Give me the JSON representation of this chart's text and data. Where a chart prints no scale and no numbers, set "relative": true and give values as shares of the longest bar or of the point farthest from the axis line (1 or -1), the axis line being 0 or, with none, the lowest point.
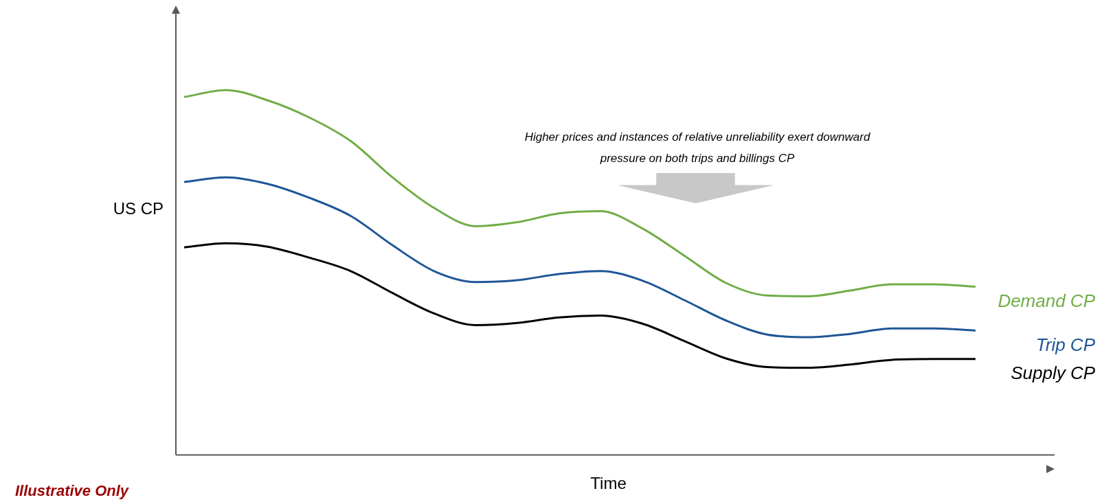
{
  "chart_data": {
    "type": "line",
    "relative": true,
    "ylabel": "US CP",
    "xlabel": "Time",
    "categories": [
      null,
      null,
      null,
      null,
      null,
      null,
      null,
      null,
      null,
      null,
      null,
      null,
      null,
      null,
      null,
      null,
      null,
      null,
      null,
      null
    ],
    "series": [
      {
        "name": "Demand CP",
        "color": "#70ad47",
        "values": [
          0.981,
          1,
          0.972,
          0.925,
          0.86,
          0.761,
          0.677,
          0.627,
          0.638,
          0.662,
          0.668,
          0.621,
          0.547,
          0.472,
          0.437,
          0.435,
          0.451,
          0.468,
          0.468,
          0.461
        ]
      },
      {
        "name": "Trip CP",
        "color": "#1f5597",
        "values": [
          0.748,
          0.761,
          0.743,
          0.705,
          0.655,
          0.575,
          0.504,
          0.474,
          0.479,
          0.496,
          0.504,
          0.478,
          0.425,
          0.369,
          0.33,
          0.323,
          0.332,
          0.347,
          0.347,
          0.341
        ]
      },
      {
        "name": "Supply CP",
        "color": "#000000",
        "values": [
          0.569,
          0.58,
          0.571,
          0.541,
          0.504,
          0.444,
          0.388,
          0.356,
          0.362,
          0.377,
          0.382,
          0.36,
          0.313,
          0.265,
          0.241,
          0.239,
          0.248,
          0.261,
          0.263,
          0.263
        ]
      }
    ],
    "annotations": [
      "Higher prices and instances of relative unreliability exert downward pressure on both trips and billings CP",
      "Illustrative Only"
    ],
    "marker": "none",
    "line_style": "solid",
    "legend": false
  }
}
